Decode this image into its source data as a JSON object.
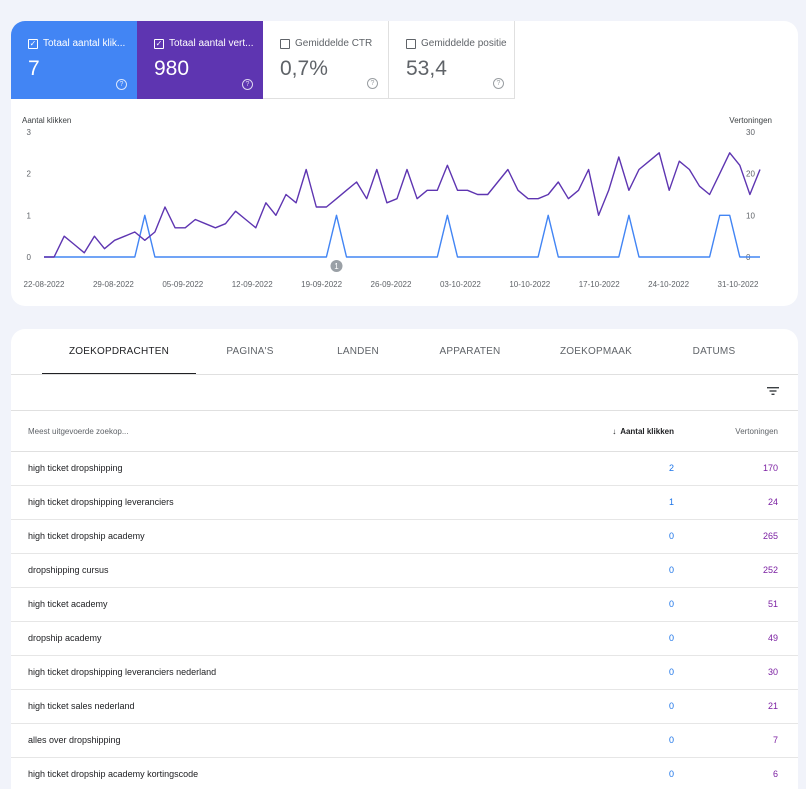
{
  "metrics": [
    {
      "label": "Totaal aantal klik...",
      "value": "7",
      "checked": true,
      "color": "#4285f4"
    },
    {
      "label": "Totaal aantal vert...",
      "value": "980",
      "checked": true,
      "color": "#5e35b1"
    },
    {
      "label": "Gemiddelde CTR",
      "value": "0,7%",
      "checked": false
    },
    {
      "label": "Gemiddelde positie",
      "value": "53,4",
      "checked": false
    }
  ],
  "chart_data": {
    "type": "line",
    "ylabel_left": "Aantal klikken",
    "ylabel_right": "Vertoningen",
    "y_left_ticks": [
      "3",
      "2",
      "1",
      "0"
    ],
    "y_right_ticks": [
      "30",
      "20",
      "10",
      "0"
    ],
    "ylim_left": [
      0,
      3
    ],
    "ylim_right": [
      0,
      30
    ],
    "x_ticks": [
      "22-08-2022",
      "29-08-2022",
      "05-09-2022",
      "12-09-2022",
      "19-09-2022",
      "26-09-2022",
      "03-10-2022",
      "10-10-2022",
      "17-10-2022",
      "24-10-2022",
      "31-10-2022"
    ],
    "annotation": "1",
    "series": [
      {
        "name": "Aantal klikken",
        "axis": "left",
        "color": "#4285f4",
        "values": [
          0,
          0,
          0,
          0,
          0,
          0,
          0,
          0,
          0,
          0,
          1,
          0,
          0,
          0,
          0,
          0,
          0,
          0,
          0,
          0,
          0,
          0,
          0,
          0,
          0,
          0,
          0,
          0,
          0,
          1,
          0,
          0,
          0,
          0,
          0,
          0,
          0,
          0,
          0,
          0,
          1,
          0,
          0,
          0,
          0,
          0,
          0,
          0,
          0,
          0,
          1,
          0,
          0,
          0,
          0,
          0,
          0,
          0,
          1,
          0,
          0,
          0,
          0,
          0,
          0,
          0,
          0,
          1,
          1,
          0,
          0,
          0
        ]
      },
      {
        "name": "Vertoningen",
        "axis": "right",
        "color": "#5e35b1",
        "values": [
          0,
          0,
          5,
          3,
          1,
          5,
          2,
          4,
          5,
          6,
          4,
          6,
          12,
          7,
          7,
          9,
          8,
          7,
          8,
          11,
          9,
          7,
          13,
          10,
          15,
          13,
          21,
          12,
          12,
          14,
          16,
          18,
          14,
          21,
          13,
          14,
          21,
          14,
          16,
          16,
          22,
          16,
          16,
          15,
          15,
          18,
          21,
          16,
          14,
          14,
          15,
          18,
          14,
          16,
          21,
          10,
          16,
          24,
          16,
          21,
          23,
          25,
          16,
          23,
          21,
          17,
          15,
          20,
          25,
          22,
          15,
          21
        ]
      }
    ]
  },
  "tabs": [
    "ZOEKOPDRACHTEN",
    "PAGINA'S",
    "LANDEN",
    "APPARATEN",
    "ZOEKOPMAAK",
    "DATUMS"
  ],
  "table": {
    "col_query": "Meest uitgevoerde zoekop...",
    "col_clicks": "Aantal klikken",
    "col_impr": "Vertoningen",
    "rows": [
      {
        "query": "high ticket dropshipping",
        "clicks": "2",
        "impr": "170"
      },
      {
        "query": "high ticket dropshipping leveranciers",
        "clicks": "1",
        "impr": "24"
      },
      {
        "query": "high ticket dropship academy",
        "clicks": "0",
        "impr": "265"
      },
      {
        "query": "dropshipping cursus",
        "clicks": "0",
        "impr": "252"
      },
      {
        "query": "high ticket academy",
        "clicks": "0",
        "impr": "51"
      },
      {
        "query": "dropship academy",
        "clicks": "0",
        "impr": "49"
      },
      {
        "query": "high ticket dropshipping leveranciers nederland",
        "clicks": "0",
        "impr": "30"
      },
      {
        "query": "high ticket sales nederland",
        "clicks": "0",
        "impr": "21"
      },
      {
        "query": "alles over dropshipping",
        "clicks": "0",
        "impr": "7"
      },
      {
        "query": "high ticket dropship academy kortingscode",
        "clicks": "0",
        "impr": "6"
      }
    ]
  }
}
